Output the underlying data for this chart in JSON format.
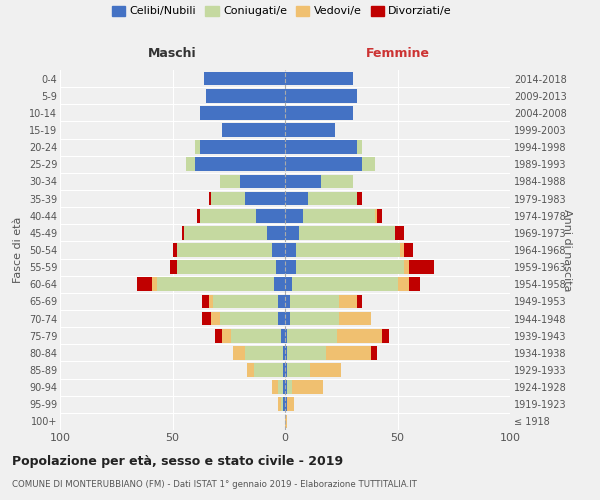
{
  "age_groups": [
    "100+",
    "95-99",
    "90-94",
    "85-89",
    "80-84",
    "75-79",
    "70-74",
    "65-69",
    "60-64",
    "55-59",
    "50-54",
    "45-49",
    "40-44",
    "35-39",
    "30-34",
    "25-29",
    "20-24",
    "15-19",
    "10-14",
    "5-9",
    "0-4"
  ],
  "birth_years": [
    "≤ 1918",
    "1919-1923",
    "1924-1928",
    "1929-1933",
    "1934-1938",
    "1939-1943",
    "1944-1948",
    "1949-1953",
    "1954-1958",
    "1959-1963",
    "1964-1968",
    "1969-1973",
    "1974-1978",
    "1979-1983",
    "1984-1988",
    "1989-1993",
    "1994-1998",
    "1999-2003",
    "2004-2008",
    "2009-2013",
    "2014-2018"
  ],
  "colors": {
    "celibi": "#4472c4",
    "coniugati": "#c5d9a0",
    "vedovi": "#f0c070",
    "divorziati": "#c00000"
  },
  "maschi": {
    "celibi": [
      0,
      1,
      1,
      1,
      1,
      2,
      3,
      3,
      5,
      4,
      6,
      8,
      13,
      18,
      20,
      40,
      38,
      28,
      38,
      35,
      36
    ],
    "coniugati": [
      0,
      1,
      2,
      13,
      17,
      22,
      26,
      29,
      52,
      44,
      42,
      37,
      25,
      15,
      9,
      4,
      2,
      0,
      0,
      0,
      0
    ],
    "vedovi": [
      0,
      1,
      3,
      3,
      5,
      4,
      4,
      2,
      2,
      0,
      0,
      0,
      0,
      0,
      0,
      0,
      0,
      0,
      0,
      0,
      0
    ],
    "divorziati": [
      0,
      0,
      0,
      0,
      0,
      3,
      4,
      3,
      7,
      3,
      2,
      1,
      1,
      1,
      0,
      0,
      0,
      0,
      0,
      0,
      0
    ]
  },
  "femmine": {
    "celibi": [
      0,
      1,
      1,
      1,
      1,
      1,
      2,
      2,
      3,
      5,
      5,
      6,
      8,
      10,
      16,
      34,
      32,
      22,
      30,
      32,
      30
    ],
    "coniugati": [
      0,
      0,
      2,
      10,
      17,
      22,
      22,
      22,
      47,
      48,
      46,
      43,
      32,
      22,
      14,
      6,
      2,
      0,
      0,
      0,
      0
    ],
    "vedovi": [
      1,
      3,
      14,
      14,
      20,
      20,
      14,
      8,
      5,
      2,
      2,
      0,
      1,
      0,
      0,
      0,
      0,
      0,
      0,
      0,
      0
    ],
    "divorziati": [
      0,
      0,
      0,
      0,
      3,
      3,
      0,
      2,
      5,
      11,
      4,
      4,
      2,
      2,
      0,
      0,
      0,
      0,
      0,
      0,
      0
    ]
  },
  "title": "Popolazione per età, sesso e stato civile - 2019",
  "subtitle": "COMUNE DI MONTERUBBIANO (FM) - Dati ISTAT 1° gennaio 2019 - Elaborazione TUTTITALIA.IT",
  "xlabel_left": "Maschi",
  "xlabel_right": "Femmine",
  "ylabel_left": "Fasce di età",
  "ylabel_right": "Anni di nascita",
  "xlim": 100,
  "legend_labels": [
    "Celibi/Nubili",
    "Coniugati/e",
    "Vedovi/e",
    "Divorziati/e"
  ],
  "background_color": "#f0f0f0"
}
